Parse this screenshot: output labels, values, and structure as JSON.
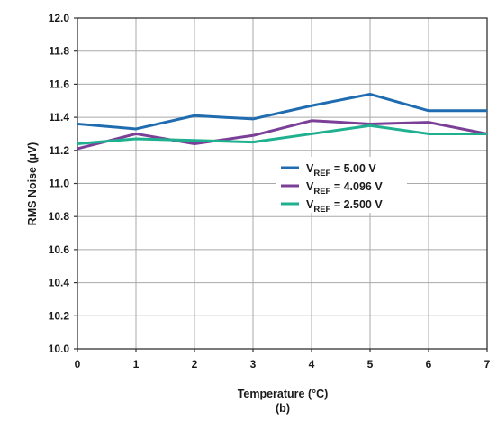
{
  "chart_data": {
    "type": "line",
    "x": [
      0,
      1,
      2,
      3,
      4,
      5,
      6,
      7
    ],
    "xlim": [
      0,
      7
    ],
    "ylim": [
      10.0,
      12.0
    ],
    "x_ticks": [
      "0",
      "1",
      "2",
      "3",
      "4",
      "5",
      "6",
      "7"
    ],
    "y_ticks": [
      "10.0",
      "10.2",
      "10.4",
      "10.6",
      "10.8",
      "11.0",
      "11.2",
      "11.4",
      "11.6",
      "11.8",
      "12.0"
    ],
    "xlabel": "Temperature (°C)",
    "ylabel": "RMS Noise (µV)",
    "caption": "(b)",
    "grid": true,
    "legend_position": "center-right",
    "series": [
      {
        "name_main": "V",
        "name_sub": "REF",
        "name_value": " = 5.00 V",
        "color": "#1f6db0",
        "values": [
          11.36,
          11.33,
          11.41,
          11.39,
          11.47,
          11.54,
          11.44,
          11.44
        ]
      },
      {
        "name_main": "V",
        "name_sub": "REF",
        "name_value": " = 4.096 V",
        "color": "#7b3f98",
        "values": [
          11.21,
          11.3,
          11.24,
          11.29,
          11.38,
          11.36,
          11.37,
          11.3
        ]
      },
      {
        "name_main": "V",
        "name_sub": "REF",
        "name_value": " = 2.500 V",
        "color": "#1fb08f",
        "values": [
          11.24,
          11.27,
          11.26,
          11.25,
          11.3,
          11.35,
          11.3,
          11.3
        ]
      }
    ]
  }
}
